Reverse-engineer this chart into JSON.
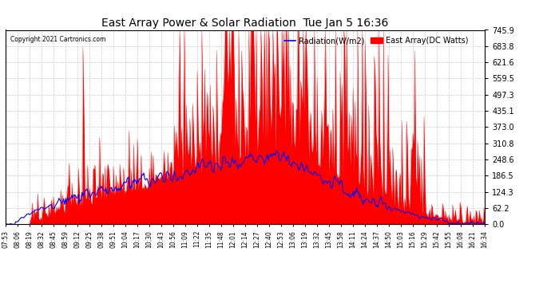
{
  "title": "East Array Power & Solar Radiation  Tue Jan 5 16:36",
  "copyright": "Copyright 2021 Cartronics.com",
  "legend_radiation": "Radiation(W/m2)",
  "legend_east_array": "East Array(DC Watts)",
  "radiation_color": "blue",
  "east_array_color": "red",
  "ymin": 0.0,
  "ymax": 745.9,
  "yticks": [
    0.0,
    62.2,
    124.3,
    186.5,
    248.6,
    310.8,
    373.0,
    435.1,
    497.3,
    559.5,
    621.6,
    683.8,
    745.9
  ],
  "xtick_labels": [
    "07:53",
    "08:06",
    "08:19",
    "08:32",
    "08:45",
    "08:59",
    "09:12",
    "09:25",
    "09:38",
    "09:51",
    "10:04",
    "10:17",
    "10:30",
    "10:43",
    "10:56",
    "11:09",
    "11:22",
    "11:35",
    "11:48",
    "12:01",
    "12:14",
    "12:27",
    "12:40",
    "12:53",
    "13:06",
    "13:19",
    "13:32",
    "13:45",
    "13:58",
    "14:11",
    "14:24",
    "14:37",
    "14:50",
    "15:03",
    "15:16",
    "15:29",
    "15:42",
    "15:55",
    "16:08",
    "16:21",
    "16:34"
  ],
  "background_color": "#ffffff",
  "grid_color": "#cccccc"
}
